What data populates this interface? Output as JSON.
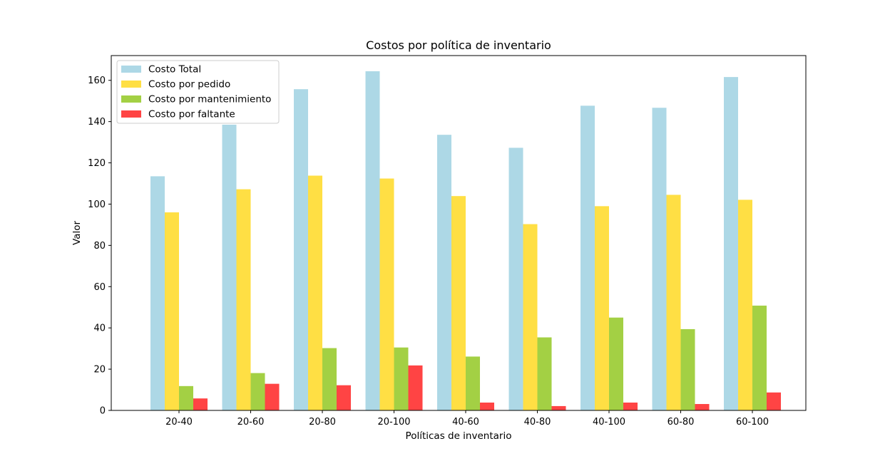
{
  "chart_data": {
    "type": "bar",
    "title": "Costos por política de inventario",
    "xlabel": "Políticas de inventario",
    "ylabel": "Valor",
    "categories": [
      "20-40",
      "20-60",
      "20-80",
      "20-100",
      "40-60",
      "40-80",
      "40-100",
      "60-80",
      "60-100"
    ],
    "series": [
      {
        "name": "Costo Total",
        "color": "#add8e6",
        "values": [
          113.5,
          138.5,
          155.7,
          164.4,
          133.6,
          127.3,
          147.7,
          146.7,
          161.6
        ]
      },
      {
        "name": "Costo por pedido",
        "color": "#ffdf44",
        "values": [
          96.0,
          107.2,
          113.8,
          112.4,
          103.9,
          90.3,
          99.0,
          104.5,
          102.1
        ]
      },
      {
        "name": "Costo por mantenimiento",
        "color": "#a3d044",
        "values": [
          11.8,
          18.1,
          30.2,
          30.5,
          26.1,
          35.4,
          45.0,
          39.4,
          50.8
        ]
      },
      {
        "name": "Costo por faltante",
        "color": "#ff4444",
        "values": [
          5.8,
          12.9,
          12.2,
          21.8,
          3.8,
          2.1,
          3.8,
          3.1,
          8.7
        ]
      }
    ],
    "ylim": [
      0,
      172
    ],
    "yticks": [
      0,
      20,
      40,
      60,
      80,
      100,
      120,
      140,
      160
    ],
    "grid": false,
    "legend_position": "top-left"
  }
}
